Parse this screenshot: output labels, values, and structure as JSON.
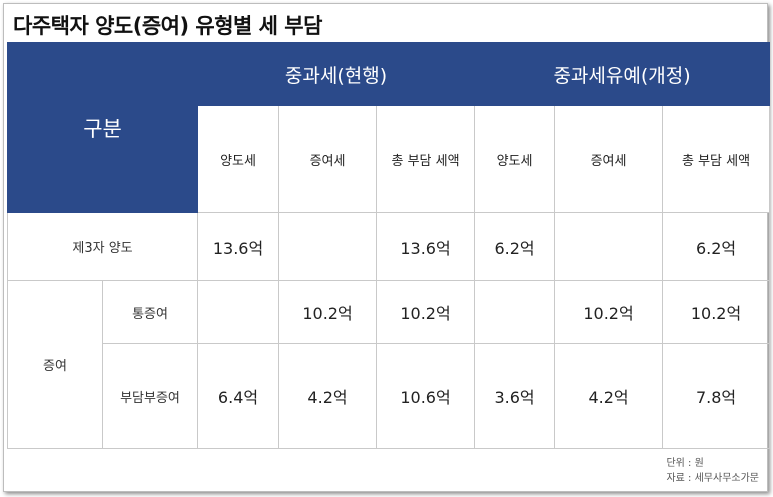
{
  "title": "다주택자 양도(증여) 유형별 세 부담",
  "table": {
    "gubun": "구분",
    "groups": [
      "중과세(현행)",
      "중과세유예(개정)"
    ],
    "subheaders": [
      "양도세",
      "증여세",
      "총 부담 세액",
      "양도세",
      "증여세",
      "총 부담 세액"
    ],
    "rows": {
      "third_party": {
        "label": "제3자 양도",
        "values": [
          "13.6억",
          "",
          "13.6억",
          "6.2억",
          "",
          "6.2억"
        ]
      },
      "gift_group_label": "증여",
      "full_gift": {
        "label": "통증여",
        "values": [
          "",
          "10.2억",
          "10.2억",
          "",
          "10.2억",
          "10.2억"
        ]
      },
      "burden_gift": {
        "label": "부담부증여",
        "values": [
          "6.4억",
          "4.2억",
          "10.6억",
          "3.6억",
          "4.2억",
          "7.8억"
        ]
      }
    }
  },
  "source": {
    "unit": "단위 : 원",
    "credit": "자료 : 세무사무소가문"
  },
  "colors": {
    "header_bg": "#2b4a8a"
  }
}
